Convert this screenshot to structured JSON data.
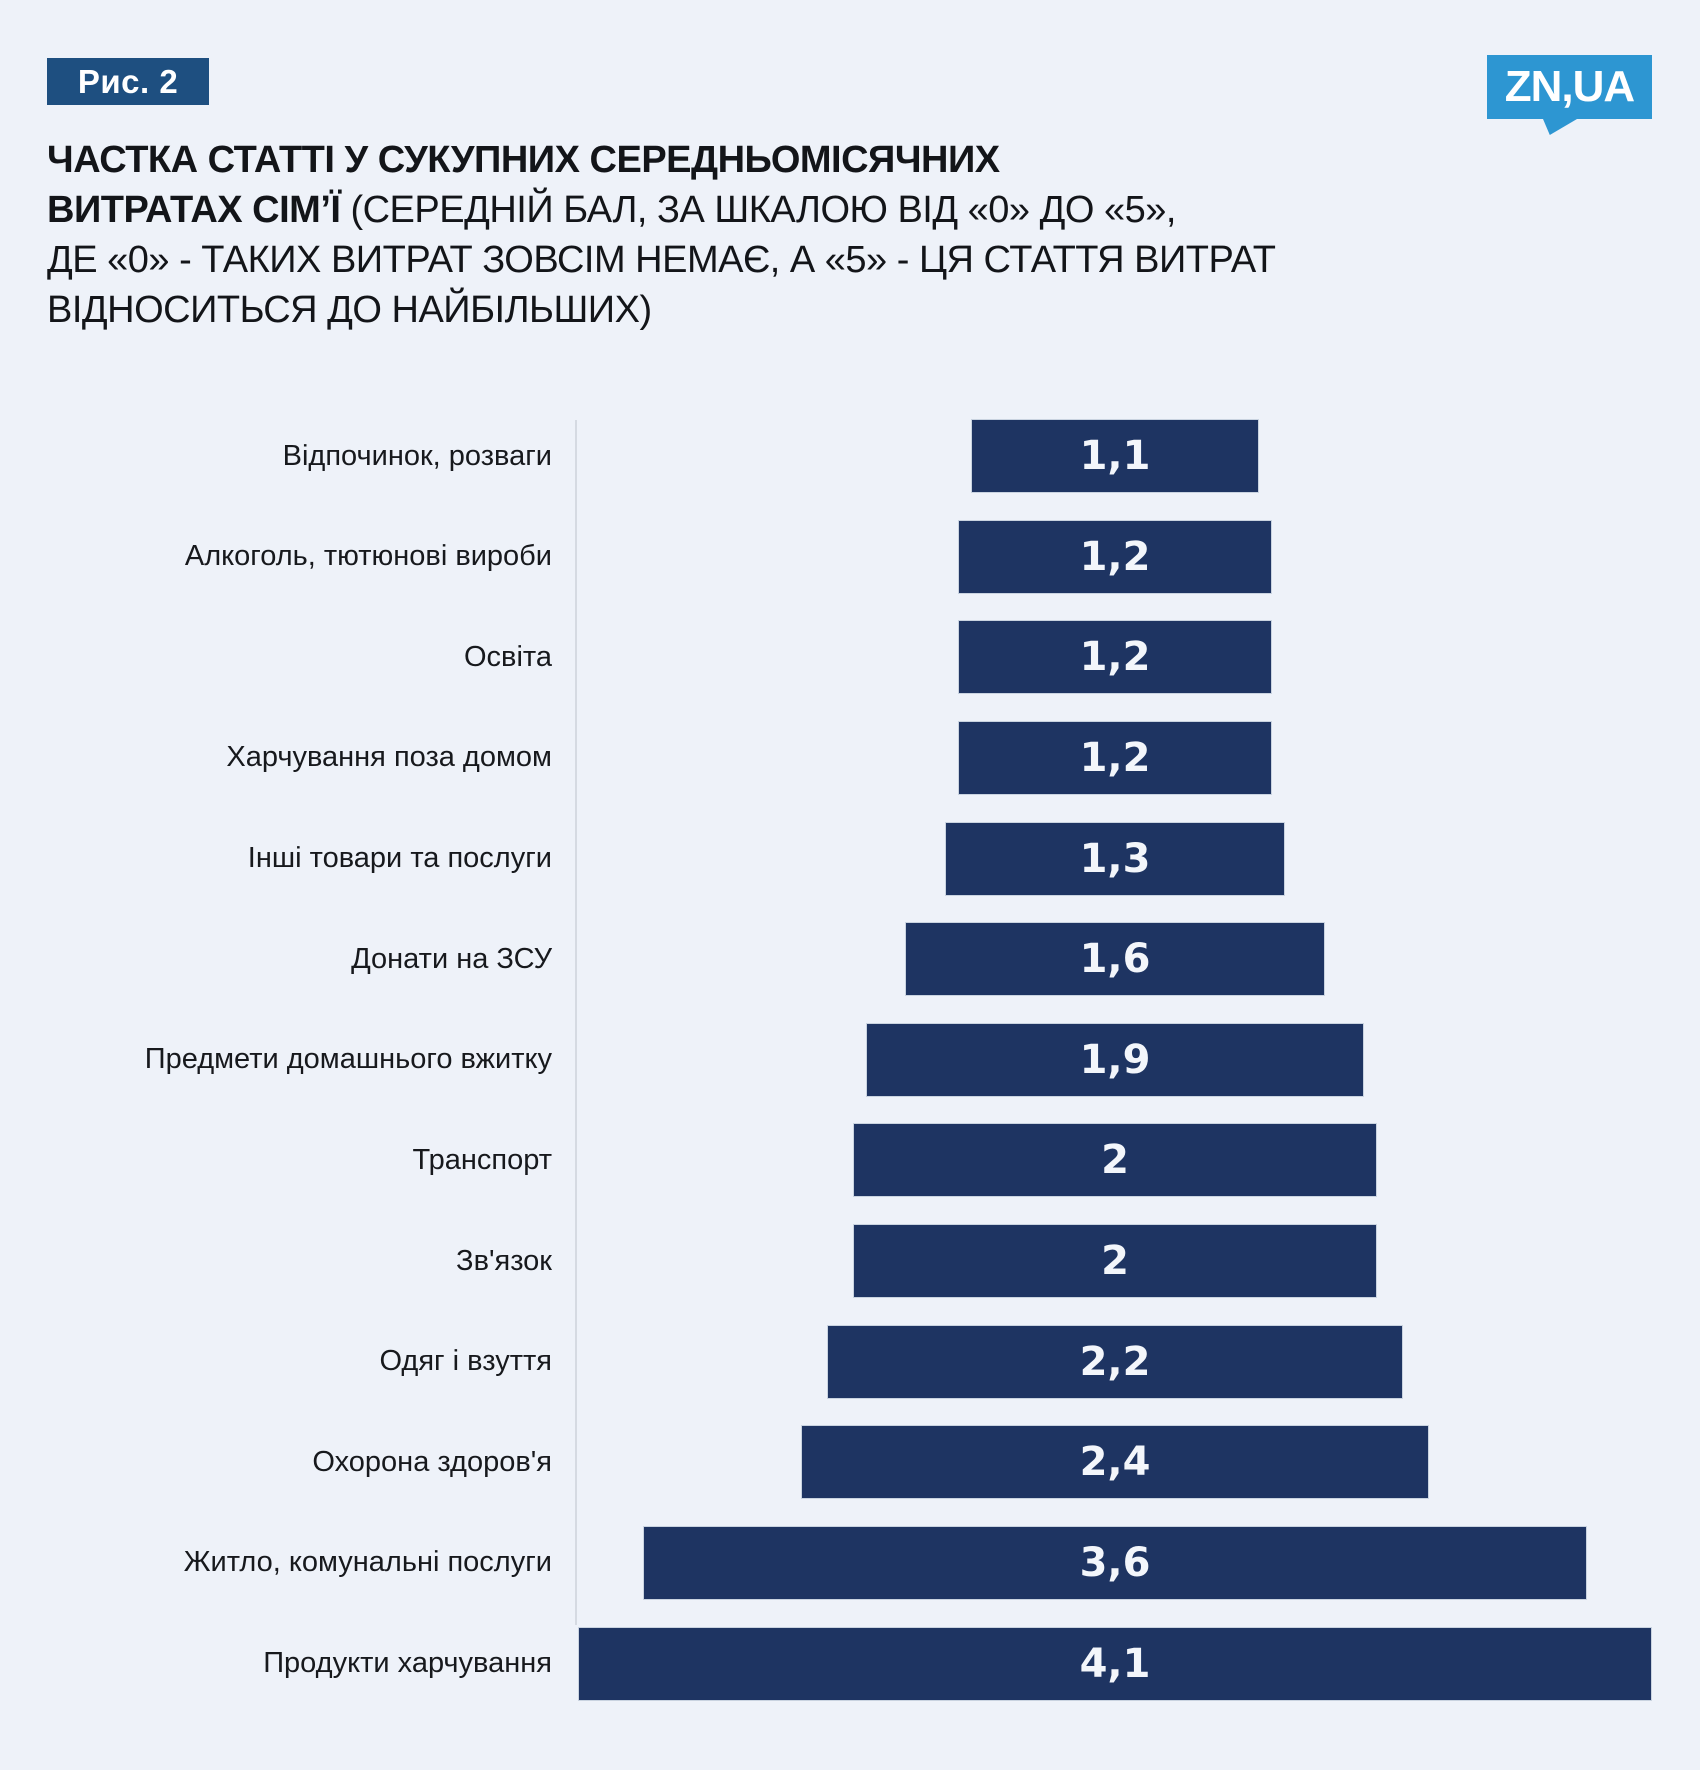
{
  "figure_label": "Рис. 2",
  "logo_text": "ZN,UA",
  "title": {
    "line1_bold": "ЧАСТКА СТАТТІ У СУКУПНИХ СЕРЕДНЬОМІСЯЧНИХ",
    "line2_bold": "ВИТРАТАХ СІМ’Ї",
    "line2_rest": " (СЕРЕДНІЙ БАЛ, ЗА ШКАЛОЮ ВІД «0» ДО «5»,",
    "line3": "ДЕ «0» - ТАКИХ ВИТРАТ ЗОВСІМ НЕМАЄ, А «5» - ЦЯ СТАТТЯ ВИТРАТ",
    "line4": "ВІДНОСИТЬСЯ ДО НАЙБІЛЬШИХ)"
  },
  "chart_data": {
    "type": "bar",
    "orientation": "horizontal",
    "style": "centered-funnel",
    "grid": false,
    "legend": false,
    "xlim": [
      0,
      4.1
    ],
    "categories": [
      "Відпочинок, розваги",
      "Алкоголь, тютюнові вироби",
      "Освіта",
      "Харчування поза домом",
      "Інші товари та послуги",
      "Донати на ЗСУ",
      "Предмети домашнього вжитку",
      "Транспорт",
      "Зв'язок",
      "Одяг і взуття",
      "Охорона здоров'я",
      "Житло, комунальні послуги",
      "Продукти харчування"
    ],
    "values": [
      1.1,
      1.2,
      1.2,
      1.2,
      1.3,
      1.6,
      1.9,
      2,
      2,
      2.2,
      2.4,
      3.6,
      4.1
    ],
    "value_labels": [
      "1,1",
      "1,2",
      "1,2",
      "1,2",
      "1,3",
      "1,6",
      "1,9",
      "2",
      "2",
      "2,2",
      "2,4",
      "3,6",
      "4,1"
    ]
  },
  "colors": {
    "background": "#eef2f9",
    "bar": "#1e3462",
    "bar_value_text": "#f3f6fb",
    "badge_background": "#1e4f80",
    "badge_text": "#ffffff",
    "logo_background": "#2d96d2",
    "logo_text": "#ffffff",
    "axis_line": "#d5dae2",
    "category_text": "#17191d",
    "title_text": "#131519"
  }
}
